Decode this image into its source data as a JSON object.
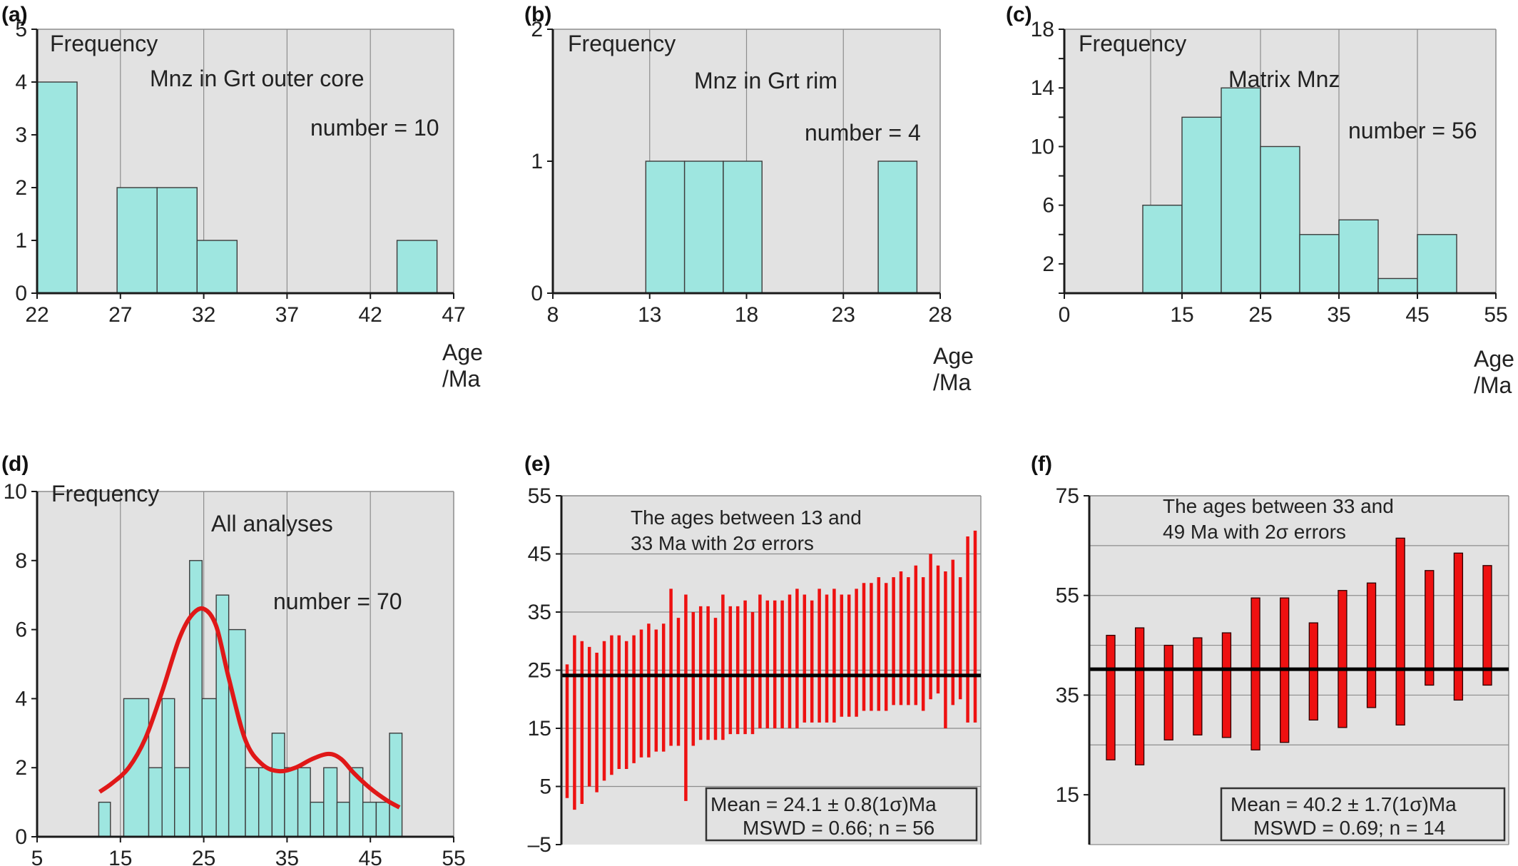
{
  "chart_data": [
    {
      "id": "a",
      "panel_label": "(a)",
      "type": "bar",
      "ylabel": "Frequency",
      "xlabel_line1": "Age",
      "xlabel_line2": "/Ma",
      "title": "Mnz in Grt outer core",
      "count_label": "number = 10",
      "xlim": [
        22,
        47
      ],
      "ylim": [
        0,
        5
      ],
      "x_ticks": [
        22,
        27,
        32,
        37,
        42,
        47
      ],
      "y_ticks": [
        0,
        1,
        2,
        3,
        4,
        5
      ],
      "x_grid": [
        22,
        27,
        32,
        37,
        42,
        47
      ],
      "y_grid": [],
      "bins": [
        {
          "x0": 22.0,
          "x1": 24.4,
          "count": 4
        },
        {
          "x0": 26.8,
          "x1": 29.2,
          "count": 2
        },
        {
          "x0": 29.2,
          "x1": 31.6,
          "count": 2
        },
        {
          "x0": 31.6,
          "x1": 34.0,
          "count": 1
        },
        {
          "x0": 43.6,
          "x1": 46.0,
          "count": 1
        }
      ]
    },
    {
      "id": "b",
      "panel_label": "(b)",
      "type": "bar",
      "ylabel": "Frequency",
      "xlabel_line1": "Age",
      "xlabel_line2": "/Ma",
      "title": "Mnz in Grt rim",
      "count_label": "number = 4",
      "xlim": [
        8,
        28
      ],
      "ylim": [
        0,
        2
      ],
      "x_ticks": [
        8,
        13,
        18,
        23,
        28
      ],
      "y_ticks": [
        0,
        1,
        2
      ],
      "x_grid": [
        13,
        18,
        23,
        28
      ],
      "y_grid": [],
      "bins": [
        {
          "x0": 12.8,
          "x1": 14.8,
          "count": 1
        },
        {
          "x0": 14.8,
          "x1": 16.8,
          "count": 1
        },
        {
          "x0": 16.8,
          "x1": 18.8,
          "count": 1
        },
        {
          "x0": 24.8,
          "x1": 26.8,
          "count": 1
        }
      ]
    },
    {
      "id": "c",
      "panel_label": "(c)",
      "type": "bar",
      "ylabel": "Frequency",
      "xlabel_line1": "Age",
      "xlabel_line2": "/Ma",
      "title": "Matrix Mnz",
      "count_label": "number = 56",
      "xlim": [
        0,
        55
      ],
      "ylim": [
        0,
        18
      ],
      "x_ticks": [
        0,
        15,
        25,
        35,
        45,
        55
      ],
      "y_ticks": [
        2,
        6,
        10,
        14,
        18
      ],
      "y_tick_marks": [
        0,
        2,
        4,
        6,
        8,
        10,
        12,
        14,
        16,
        18
      ],
      "x_grid": [
        11,
        25,
        35,
        45,
        55
      ],
      "y_grid": [],
      "bins": [
        {
          "x0": 10,
          "x1": 15,
          "count": 6
        },
        {
          "x0": 15,
          "x1": 20,
          "count": 12
        },
        {
          "x0": 20,
          "x1": 25,
          "count": 14
        },
        {
          "x0": 25,
          "x1": 30,
          "count": 10
        },
        {
          "x0": 30,
          "x1": 35,
          "count": 4
        },
        {
          "x0": 35,
          "x1": 40,
          "count": 5
        },
        {
          "x0": 40,
          "x1": 45,
          "count": 1
        },
        {
          "x0": 45,
          "x1": 50,
          "count": 4
        }
      ]
    },
    {
      "id": "d",
      "panel_label": "(d)",
      "type": "bar",
      "ylabel": "Frequency",
      "title": "All analyses",
      "count_label": "number = 70",
      "xlim": [
        5,
        55
      ],
      "ylim": [
        0,
        10
      ],
      "x_ticks": [
        5,
        15,
        25,
        35,
        45,
        55
      ],
      "y_ticks": [
        0,
        2,
        4,
        6,
        8,
        10
      ],
      "x_grid": [
        15,
        25,
        35,
        45,
        55
      ],
      "y_grid": [],
      "bins": [
        {
          "x0": 12.4,
          "x1": 13.8,
          "count": 1
        },
        {
          "x0": 15.4,
          "x1": 18.4,
          "count": 4
        },
        {
          "x0": 18.4,
          "x1": 20.0,
          "count": 2
        },
        {
          "x0": 20.0,
          "x1": 21.5,
          "count": 4
        },
        {
          "x0": 21.5,
          "x1": 23.3,
          "count": 2
        },
        {
          "x0": 23.3,
          "x1": 24.8,
          "count": 8
        },
        {
          "x0": 24.8,
          "x1": 26.5,
          "count": 4
        },
        {
          "x0": 26.5,
          "x1": 28.0,
          "count": 7
        },
        {
          "x0": 28.0,
          "x1": 30.0,
          "count": 6
        },
        {
          "x0": 30.0,
          "x1": 31.6,
          "count": 2
        },
        {
          "x0": 31.6,
          "x1": 33.2,
          "count": 2
        },
        {
          "x0": 33.2,
          "x1": 34.7,
          "count": 3
        },
        {
          "x0": 34.7,
          "x1": 36.3,
          "count": 2
        },
        {
          "x0": 36.3,
          "x1": 37.8,
          "count": 2
        },
        {
          "x0": 37.8,
          "x1": 39.4,
          "count": 1
        },
        {
          "x0": 39.4,
          "x1": 41.0,
          "count": 2
        },
        {
          "x0": 41.0,
          "x1": 42.5,
          "count": 1
        },
        {
          "x0": 42.5,
          "x1": 44.1,
          "count": 2
        },
        {
          "x0": 44.1,
          "x1": 45.7,
          "count": 1
        },
        {
          "x0": 45.7,
          "x1": 47.3,
          "count": 1
        },
        {
          "x0": 47.3,
          "x1": 48.8,
          "count": 3
        }
      ],
      "curve": {
        "x": [
          12.5,
          14,
          16,
          18,
          20,
          22,
          23.5,
          25,
          26.5,
          28,
          30,
          32,
          34,
          36,
          38,
          40,
          41.5,
          43,
          45,
          47,
          48.5
        ],
        "y": [
          1.3,
          1.55,
          2.0,
          2.85,
          4.2,
          5.7,
          6.4,
          6.6,
          6.1,
          4.6,
          2.8,
          2.1,
          1.9,
          2.0,
          2.25,
          2.4,
          2.25,
          1.85,
          1.4,
          1.05,
          0.85
        ]
      }
    },
    {
      "id": "e",
      "panel_label": "(e)",
      "type": "scatter",
      "note_line1": "The ages between 13 and",
      "note_line2": "33 Ma with 2σ errors",
      "ylim": [
        -5,
        55
      ],
      "y_ticks": [
        -5,
        5,
        15,
        25,
        35,
        45,
        55
      ],
      "y_tick_labels": [
        "–5",
        "5",
        "15",
        "25",
        "35",
        "45",
        "55"
      ],
      "y_grid": [
        5,
        15,
        25,
        35,
        45,
        55
      ],
      "mean": 24.1,
      "stat_line1": "Mean = 24.1 ± 0.8(1σ)Ma",
      "stat_line2": "MSWD = 0.66; n = 56",
      "lows": [
        3.0,
        1.0,
        2.0,
        5.0,
        4.0,
        6.0,
        7.0,
        8.0,
        8.0,
        9.0,
        10.0,
        10.0,
        11.0,
        11.0,
        12.0,
        12.0,
        2.5,
        12.0,
        13.0,
        13.0,
        13.0,
        13.0,
        14.0,
        14.0,
        14.0,
        14.0,
        15.0,
        15.0,
        15.0,
        15.0,
        15.0,
        15.0,
        16.0,
        16.0,
        16.0,
        16.0,
        16.0,
        17.0,
        17.0,
        17.0,
        18.0,
        18.0,
        18.0,
        18.0,
        19.0,
        19.0,
        19.0,
        19.0,
        18.0,
        20.0,
        21.0,
        15.0,
        19.0,
        20.0,
        16.0,
        16.0
      ],
      "highs": [
        26.0,
        31.0,
        30.0,
        29.0,
        28.0,
        30.0,
        31.0,
        31.0,
        30.0,
        31.0,
        32.0,
        33.0,
        32.0,
        33.0,
        39.0,
        34.0,
        38.0,
        35.0,
        36.0,
        36.0,
        34.0,
        38.0,
        36.0,
        36.0,
        37.0,
        35.0,
        38.0,
        37.0,
        37.0,
        37.0,
        38.0,
        39.0,
        38.0,
        37.0,
        39.0,
        38.0,
        39.0,
        38.0,
        38.0,
        39.0,
        40.0,
        40.0,
        41.0,
        40.0,
        41.0,
        42.0,
        41.0,
        43.0,
        41.0,
        45.0,
        43.0,
        42.0,
        44.0,
        41.0,
        48.0,
        49.0
      ]
    },
    {
      "id": "f",
      "panel_label": "(f)",
      "type": "scatter",
      "note_line1": "The ages between 33 and",
      "note_line2": "49 Ma with 2σ errors",
      "ylim": [
        5,
        75
      ],
      "y_ticks": [
        15,
        35,
        55,
        75
      ],
      "y_grid": [
        5,
        25,
        35,
        45,
        55,
        65,
        75
      ],
      "mean": 40.2,
      "stat_line1": "Mean = 40.2 ± 1.7(1σ)Ma",
      "stat_line2": "MSWD = 0.69; n = 14",
      "lows": [
        22.0,
        21.0,
        26.0,
        27.0,
        26.5,
        24.0,
        25.5,
        30.0,
        28.5,
        32.5,
        29.0,
        37.0,
        34.0,
        37.0
      ],
      "highs": [
        47.0,
        48.5,
        45.0,
        46.5,
        47.5,
        54.5,
        54.5,
        49.5,
        56.0,
        57.5,
        66.5,
        60.0,
        63.5,
        61.0
      ]
    }
  ]
}
